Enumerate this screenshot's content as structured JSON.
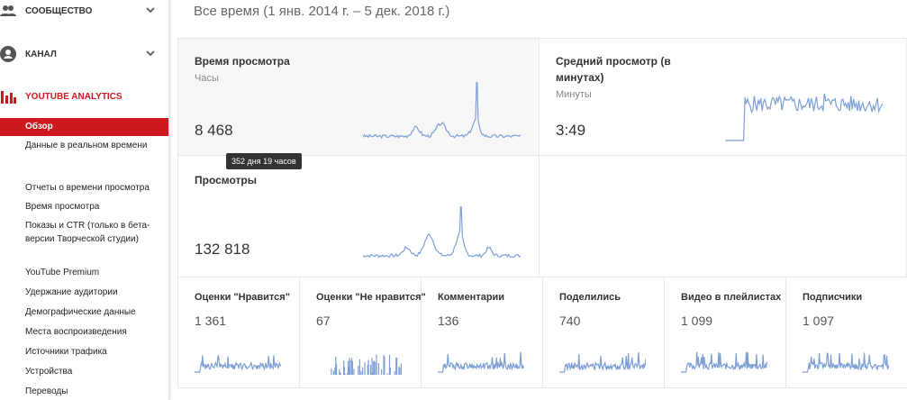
{
  "sidebar": {
    "sections": [
      "СООБЩЕСТВО",
      "КАНАЛ",
      "YOUTUBE ANALYTICS"
    ],
    "nav": [
      "Обзор",
      "Данные в реальном времени",
      "Отчеты о времени просмотра",
      "Время просмотра",
      "Показы и CTR (только в бета-версии Творческой студии)",
      "YouTube Premium",
      "Удержание аудитории",
      "Демографические данные",
      "Места воспроизведения",
      "Источники трафика",
      "Устройства",
      "Переводы"
    ]
  },
  "header": {
    "title": "Все время (1 янв. 2014 г. – 5 дек. 2018 г.)"
  },
  "cards": [
    {
      "title": "Время просмотра",
      "unit": "Часы",
      "value": "8 468",
      "tooltip": "352 дня 19 часов"
    },
    {
      "title": "Средний просмотр (в минутах)",
      "unit": "Минуты",
      "value": "3:49"
    },
    {
      "title": "Просмотры",
      "value": "132 818"
    }
  ],
  "metrics": [
    {
      "title": "Оценки \"Нравится\"",
      "value": "1 361"
    },
    {
      "title": "Оценки \"Не нравится\"",
      "value": "67"
    },
    {
      "title": "Комментарии",
      "value": "136"
    },
    {
      "title": "Поделились",
      "value": "740"
    },
    {
      "title": "Видео в плейлистах",
      "value": "1 099"
    },
    {
      "title": "Подписчики",
      "value": "1 097"
    }
  ]
}
